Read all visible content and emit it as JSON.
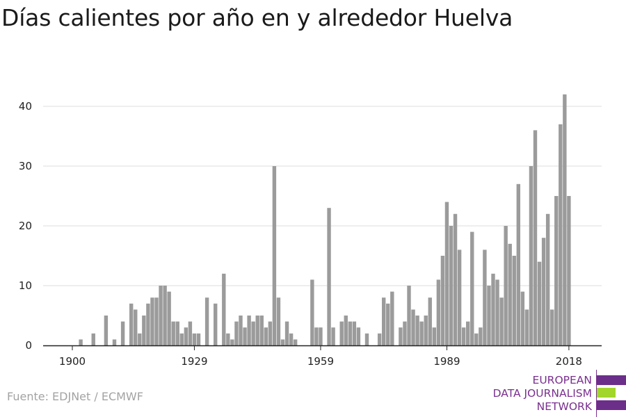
{
  "title": "Días calientes por año en y alrededor Huelva",
  "source": "Fuente: EDJNet / ECMWF",
  "logo": {
    "line1": "EUROPEAN",
    "line2": "DATA JOURNALISM",
    "line3": "NETWORK",
    "colors": {
      "purple": "#6b2f8a",
      "green": "#a3d62a"
    }
  },
  "colors": {
    "bar": "#9b9b9b",
    "grid": "#dcdcdc",
    "axis": "#222222"
  },
  "chart_data": {
    "type": "bar",
    "title": "Días calientes por año en y alrededor Huelva",
    "xlabel": "",
    "ylabel": "",
    "ylim": [
      0,
      42
    ],
    "yticks": [
      0,
      10,
      20,
      30,
      40
    ],
    "xticks": [
      1900,
      1929,
      1959,
      1989,
      2018
    ],
    "grid": true,
    "x": [
      1900,
      1901,
      1902,
      1903,
      1904,
      1905,
      1906,
      1907,
      1908,
      1909,
      1910,
      1911,
      1912,
      1913,
      1914,
      1915,
      1916,
      1917,
      1918,
      1919,
      1920,
      1921,
      1922,
      1923,
      1924,
      1925,
      1926,
      1927,
      1928,
      1929,
      1930,
      1931,
      1932,
      1933,
      1934,
      1935,
      1936,
      1937,
      1938,
      1939,
      1940,
      1941,
      1942,
      1943,
      1944,
      1945,
      1946,
      1947,
      1948,
      1949,
      1950,
      1951,
      1952,
      1953,
      1954,
      1955,
      1956,
      1957,
      1958,
      1959,
      1960,
      1961,
      1962,
      1963,
      1964,
      1965,
      1966,
      1967,
      1968,
      1969,
      1970,
      1971,
      1972,
      1973,
      1974,
      1975,
      1976,
      1977,
      1978,
      1979,
      1980,
      1981,
      1982,
      1983,
      1984,
      1985,
      1986,
      1987,
      1988,
      1989,
      1990,
      1991,
      1992,
      1993,
      1994,
      1995,
      1996,
      1997,
      1998,
      1999,
      2000,
      2001,
      2002,
      2003,
      2004,
      2005,
      2006,
      2007,
      2008,
      2009,
      2010,
      2011,
      2012,
      2013,
      2014,
      2015,
      2016,
      2017,
      2018,
      2019
    ],
    "values": [
      0,
      0,
      1,
      0,
      0,
      2,
      0,
      0,
      5,
      0,
      1,
      0,
      4,
      0,
      7,
      6,
      2,
      5,
      7,
      8,
      8,
      10,
      10,
      9,
      4,
      4,
      2,
      3,
      4,
      2,
      2,
      0,
      8,
      0,
      7,
      0,
      12,
      2,
      1,
      4,
      5,
      3,
      5,
      4,
      5,
      5,
      3,
      4,
      30,
      8,
      1,
      4,
      2,
      1,
      0,
      0,
      0,
      11,
      3,
      3,
      0,
      23,
      3,
      0,
      4,
      5,
      4,
      4,
      3,
      0,
      2,
      0,
      0,
      2,
      8,
      7,
      9,
      0,
      3,
      4,
      10,
      6,
      5,
      4,
      5,
      8,
      3,
      11,
      15,
      24,
      20,
      22,
      16,
      3,
      4,
      19,
      2,
      3,
      16,
      10,
      12,
      11,
      8,
      20,
      17,
      15,
      27,
      9,
      6,
      30,
      36,
      14,
      18,
      22,
      6,
      25,
      37,
      42,
      25,
      0
    ]
  }
}
